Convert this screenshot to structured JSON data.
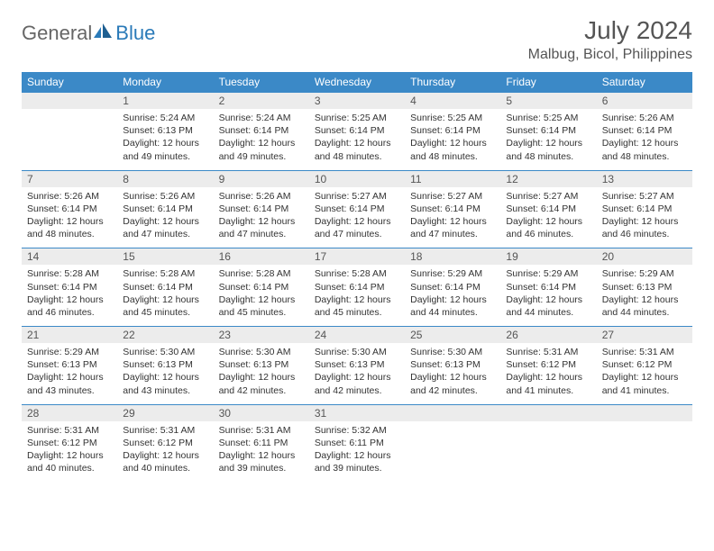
{
  "brand": {
    "word1": "General",
    "word2": "Blue"
  },
  "title": "July 2024",
  "location": "Malbug, Bicol, Philippines",
  "colors": {
    "header_bg": "#3b89c7",
    "header_text": "#ffffff",
    "daynum_bg": "#ececec",
    "text": "#333333",
    "rule": "#3b89c7",
    "brand_gray": "#666666",
    "brand_blue": "#2a7ab8"
  },
  "typography": {
    "title_fontsize": 28,
    "location_fontsize": 16,
    "dayheader_fontsize": 12,
    "body_fontsize": 10.5
  },
  "calendar": {
    "type": "table",
    "columns": [
      "Sunday",
      "Monday",
      "Tuesday",
      "Wednesday",
      "Thursday",
      "Friday",
      "Saturday"
    ],
    "weeks": [
      [
        null,
        {
          "n": "1",
          "sunrise": "5:24 AM",
          "sunset": "6:13 PM",
          "daylight": "12 hours and 49 minutes."
        },
        {
          "n": "2",
          "sunrise": "5:24 AM",
          "sunset": "6:14 PM",
          "daylight": "12 hours and 49 minutes."
        },
        {
          "n": "3",
          "sunrise": "5:25 AM",
          "sunset": "6:14 PM",
          "daylight": "12 hours and 48 minutes."
        },
        {
          "n": "4",
          "sunrise": "5:25 AM",
          "sunset": "6:14 PM",
          "daylight": "12 hours and 48 minutes."
        },
        {
          "n": "5",
          "sunrise": "5:25 AM",
          "sunset": "6:14 PM",
          "daylight": "12 hours and 48 minutes."
        },
        {
          "n": "6",
          "sunrise": "5:26 AM",
          "sunset": "6:14 PM",
          "daylight": "12 hours and 48 minutes."
        }
      ],
      [
        {
          "n": "7",
          "sunrise": "5:26 AM",
          "sunset": "6:14 PM",
          "daylight": "12 hours and 48 minutes."
        },
        {
          "n": "8",
          "sunrise": "5:26 AM",
          "sunset": "6:14 PM",
          "daylight": "12 hours and 47 minutes."
        },
        {
          "n": "9",
          "sunrise": "5:26 AM",
          "sunset": "6:14 PM",
          "daylight": "12 hours and 47 minutes."
        },
        {
          "n": "10",
          "sunrise": "5:27 AM",
          "sunset": "6:14 PM",
          "daylight": "12 hours and 47 minutes."
        },
        {
          "n": "11",
          "sunrise": "5:27 AM",
          "sunset": "6:14 PM",
          "daylight": "12 hours and 47 minutes."
        },
        {
          "n": "12",
          "sunrise": "5:27 AM",
          "sunset": "6:14 PM",
          "daylight": "12 hours and 46 minutes."
        },
        {
          "n": "13",
          "sunrise": "5:27 AM",
          "sunset": "6:14 PM",
          "daylight": "12 hours and 46 minutes."
        }
      ],
      [
        {
          "n": "14",
          "sunrise": "5:28 AM",
          "sunset": "6:14 PM",
          "daylight": "12 hours and 46 minutes."
        },
        {
          "n": "15",
          "sunrise": "5:28 AM",
          "sunset": "6:14 PM",
          "daylight": "12 hours and 45 minutes."
        },
        {
          "n": "16",
          "sunrise": "5:28 AM",
          "sunset": "6:14 PM",
          "daylight": "12 hours and 45 minutes."
        },
        {
          "n": "17",
          "sunrise": "5:28 AM",
          "sunset": "6:14 PM",
          "daylight": "12 hours and 45 minutes."
        },
        {
          "n": "18",
          "sunrise": "5:29 AM",
          "sunset": "6:14 PM",
          "daylight": "12 hours and 44 minutes."
        },
        {
          "n": "19",
          "sunrise": "5:29 AM",
          "sunset": "6:14 PM",
          "daylight": "12 hours and 44 minutes."
        },
        {
          "n": "20",
          "sunrise": "5:29 AM",
          "sunset": "6:13 PM",
          "daylight": "12 hours and 44 minutes."
        }
      ],
      [
        {
          "n": "21",
          "sunrise": "5:29 AM",
          "sunset": "6:13 PM",
          "daylight": "12 hours and 43 minutes."
        },
        {
          "n": "22",
          "sunrise": "5:30 AM",
          "sunset": "6:13 PM",
          "daylight": "12 hours and 43 minutes."
        },
        {
          "n": "23",
          "sunrise": "5:30 AM",
          "sunset": "6:13 PM",
          "daylight": "12 hours and 42 minutes."
        },
        {
          "n": "24",
          "sunrise": "5:30 AM",
          "sunset": "6:13 PM",
          "daylight": "12 hours and 42 minutes."
        },
        {
          "n": "25",
          "sunrise": "5:30 AM",
          "sunset": "6:13 PM",
          "daylight": "12 hours and 42 minutes."
        },
        {
          "n": "26",
          "sunrise": "5:31 AM",
          "sunset": "6:12 PM",
          "daylight": "12 hours and 41 minutes."
        },
        {
          "n": "27",
          "sunrise": "5:31 AM",
          "sunset": "6:12 PM",
          "daylight": "12 hours and 41 minutes."
        }
      ],
      [
        {
          "n": "28",
          "sunrise": "5:31 AM",
          "sunset": "6:12 PM",
          "daylight": "12 hours and 40 minutes."
        },
        {
          "n": "29",
          "sunrise": "5:31 AM",
          "sunset": "6:12 PM",
          "daylight": "12 hours and 40 minutes."
        },
        {
          "n": "30",
          "sunrise": "5:31 AM",
          "sunset": "6:11 PM",
          "daylight": "12 hours and 39 minutes."
        },
        {
          "n": "31",
          "sunrise": "5:32 AM",
          "sunset": "6:11 PM",
          "daylight": "12 hours and 39 minutes."
        },
        null,
        null,
        null
      ]
    ]
  },
  "labels": {
    "sunrise": "Sunrise: ",
    "sunset": "Sunset: ",
    "daylight": "Daylight: "
  }
}
